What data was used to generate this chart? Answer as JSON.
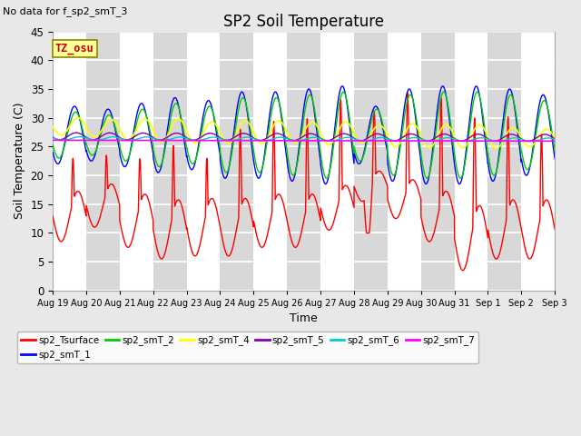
{
  "title": "SP2 Soil Temperature",
  "subtitle": "No data for f_sp2_smT_3",
  "xlabel": "Time",
  "ylabel": "Soil Temperature (C)",
  "ylim": [
    0,
    45
  ],
  "yticks": [
    0,
    5,
    10,
    15,
    20,
    25,
    30,
    35,
    40,
    45
  ],
  "xtick_labels": [
    "Aug 19",
    "Aug 20",
    "Aug 21",
    "Aug 22",
    "Aug 23",
    "Aug 24",
    "Aug 25",
    "Aug 26",
    "Aug 27",
    "Aug 28",
    "Aug 29",
    "Aug 30",
    "Aug 31",
    "Sep 1",
    "Sep 2",
    "Sep 3"
  ],
  "tz_label": "TZ_osu",
  "series": {
    "sp2_Tsurface": {
      "color": "#FF0000",
      "linewidth": 1.0,
      "zorder": 3
    },
    "sp2_smT_1": {
      "color": "#0000FF",
      "linewidth": 1.0,
      "zorder": 4
    },
    "sp2_smT_2": {
      "color": "#00CC00",
      "linewidth": 1.0,
      "zorder": 4
    },
    "sp2_smT_4": {
      "color": "#FFFF00",
      "linewidth": 1.2,
      "zorder": 4
    },
    "sp2_smT_5": {
      "color": "#8800AA",
      "linewidth": 1.0,
      "zorder": 4
    },
    "sp2_smT_6": {
      "color": "#00CCCC",
      "linewidth": 1.0,
      "zorder": 4
    },
    "sp2_smT_7": {
      "color": "#FF00FF",
      "linewidth": 1.2,
      "zorder": 5
    }
  },
  "legend_order": [
    "sp2_Tsurface",
    "sp2_smT_1",
    "sp2_smT_2",
    "sp2_smT_4",
    "sp2_smT_5",
    "sp2_smT_6",
    "sp2_smT_7"
  ],
  "bg_color": "#E8E8E8",
  "title_fontsize": 12,
  "axis_label_fontsize": 9
}
